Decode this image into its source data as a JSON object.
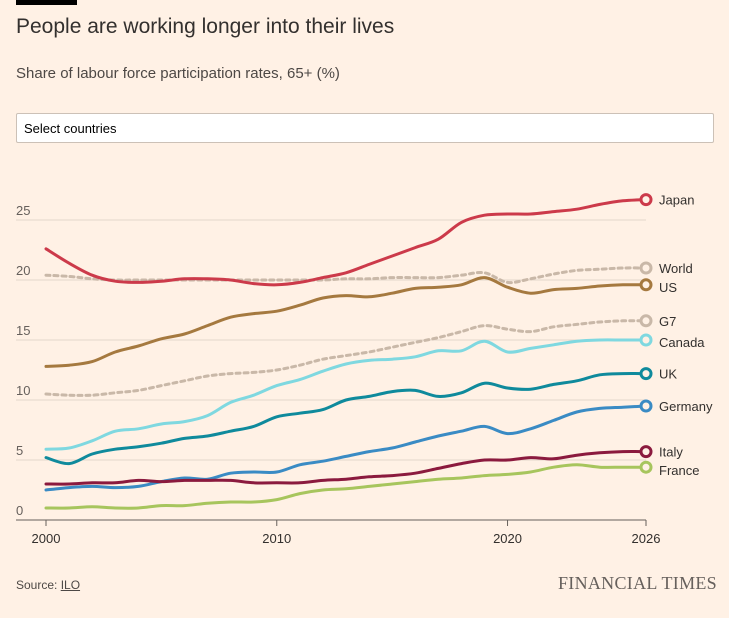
{
  "header": {
    "title": "People are working longer into their lives",
    "subtitle": "Share of labour force participation rates, 65+ (%)"
  },
  "controls": {
    "select_placeholder": "Select countries"
  },
  "footer": {
    "source_label": "Source:",
    "source_link": "ILO",
    "brand": "FINANCIAL TIMES"
  },
  "chart_data": {
    "type": "line",
    "title": "People are working longer into their lives",
    "ylabel": "Share of labour force participation rates, 65+ (%)",
    "xlabel": "",
    "xlim": [
      2000,
      2026
    ],
    "ylim": [
      0,
      27
    ],
    "xticks": [
      2000,
      2010,
      2020,
      2026
    ],
    "yticks": [
      0,
      5,
      10,
      15,
      20,
      25
    ],
    "grid": true,
    "x": [
      2000,
      2001,
      2002,
      2003,
      2004,
      2005,
      2006,
      2007,
      2008,
      2009,
      2010,
      2011,
      2012,
      2013,
      2014,
      2015,
      2016,
      2017,
      2018,
      2019,
      2020,
      2021,
      2022,
      2023,
      2024,
      2025,
      2026
    ],
    "series": [
      {
        "name": "Japan",
        "color": "#cc3a4a",
        "dashed": false,
        "values": [
          22.6,
          21.4,
          20.4,
          19.9,
          19.8,
          19.9,
          20.1,
          20.1,
          20.0,
          19.7,
          19.6,
          19.8,
          20.2,
          20.6,
          21.3,
          22.0,
          22.7,
          23.4,
          24.8,
          25.4,
          25.5,
          25.5,
          25.7,
          25.9,
          26.3,
          26.6,
          26.7
        ]
      },
      {
        "name": "World",
        "color": "#c9b8a8",
        "dashed": true,
        "values": [
          20.4,
          20.3,
          20.1,
          20.0,
          20.0,
          20.0,
          20.0,
          20.0,
          20.0,
          20.0,
          20.0,
          20.0,
          20.0,
          20.1,
          20.1,
          20.2,
          20.2,
          20.2,
          20.4,
          20.6,
          19.8,
          20.1,
          20.5,
          20.8,
          20.9,
          21.0,
          21.0
        ]
      },
      {
        "name": "US",
        "color": "#a5793f",
        "dashed": false,
        "values": [
          12.8,
          12.9,
          13.2,
          14.0,
          14.5,
          15.1,
          15.5,
          16.2,
          16.9,
          17.2,
          17.4,
          17.9,
          18.5,
          18.7,
          18.6,
          18.9,
          19.3,
          19.4,
          19.6,
          20.2,
          19.4,
          18.9,
          19.2,
          19.3,
          19.5,
          19.6,
          19.6
        ]
      },
      {
        "name": "G7",
        "color": "#c9b8a8",
        "dashed": true,
        "values": [
          10.5,
          10.4,
          10.4,
          10.6,
          10.8,
          11.2,
          11.6,
          12.0,
          12.2,
          12.3,
          12.5,
          12.9,
          13.4,
          13.7,
          14.0,
          14.4,
          14.8,
          15.2,
          15.7,
          16.2,
          15.9,
          15.7,
          16.1,
          16.3,
          16.5,
          16.6,
          16.6
        ]
      },
      {
        "name": "Canada",
        "color": "#7fd8e0",
        "dashed": false,
        "values": [
          5.9,
          6.0,
          6.6,
          7.4,
          7.6,
          8.0,
          8.2,
          8.7,
          9.8,
          10.4,
          11.2,
          11.7,
          12.4,
          13.0,
          13.3,
          13.4,
          13.6,
          14.1,
          14.1,
          14.9,
          14.0,
          14.3,
          14.6,
          14.9,
          15.0,
          15.0,
          15.0
        ]
      },
      {
        "name": "UK",
        "color": "#0f8a9c",
        "dashed": false,
        "values": [
          5.2,
          4.7,
          5.5,
          5.9,
          6.1,
          6.4,
          6.8,
          7.0,
          7.4,
          7.8,
          8.6,
          8.9,
          9.2,
          10.0,
          10.3,
          10.7,
          10.8,
          10.3,
          10.6,
          11.4,
          11.0,
          10.9,
          11.3,
          11.6,
          12.1,
          12.2,
          12.2
        ]
      },
      {
        "name": "Germany",
        "color": "#3a8bc4",
        "dashed": false,
        "values": [
          2.5,
          2.7,
          2.8,
          2.7,
          2.8,
          3.2,
          3.5,
          3.4,
          3.9,
          4.0,
          4.0,
          4.6,
          4.9,
          5.3,
          5.7,
          6.0,
          6.5,
          7.0,
          7.4,
          7.8,
          7.2,
          7.6,
          8.3,
          9.0,
          9.3,
          9.4,
          9.5
        ]
      },
      {
        "name": "Italy",
        "color": "#8b1a3e",
        "dashed": false,
        "values": [
          3.0,
          3.0,
          3.1,
          3.1,
          3.3,
          3.2,
          3.3,
          3.3,
          3.3,
          3.1,
          3.1,
          3.1,
          3.3,
          3.4,
          3.6,
          3.7,
          3.9,
          4.3,
          4.7,
          5.0,
          5.0,
          5.2,
          5.1,
          5.4,
          5.6,
          5.7,
          5.7
        ]
      },
      {
        "name": "France",
        "color": "#a7c55d",
        "dashed": false,
        "values": [
          1.0,
          1.0,
          1.1,
          1.0,
          1.0,
          1.2,
          1.2,
          1.4,
          1.5,
          1.5,
          1.7,
          2.2,
          2.5,
          2.6,
          2.8,
          3.0,
          3.2,
          3.4,
          3.5,
          3.7,
          3.8,
          4.0,
          4.4,
          4.6,
          4.4,
          4.4,
          4.4
        ]
      }
    ]
  }
}
